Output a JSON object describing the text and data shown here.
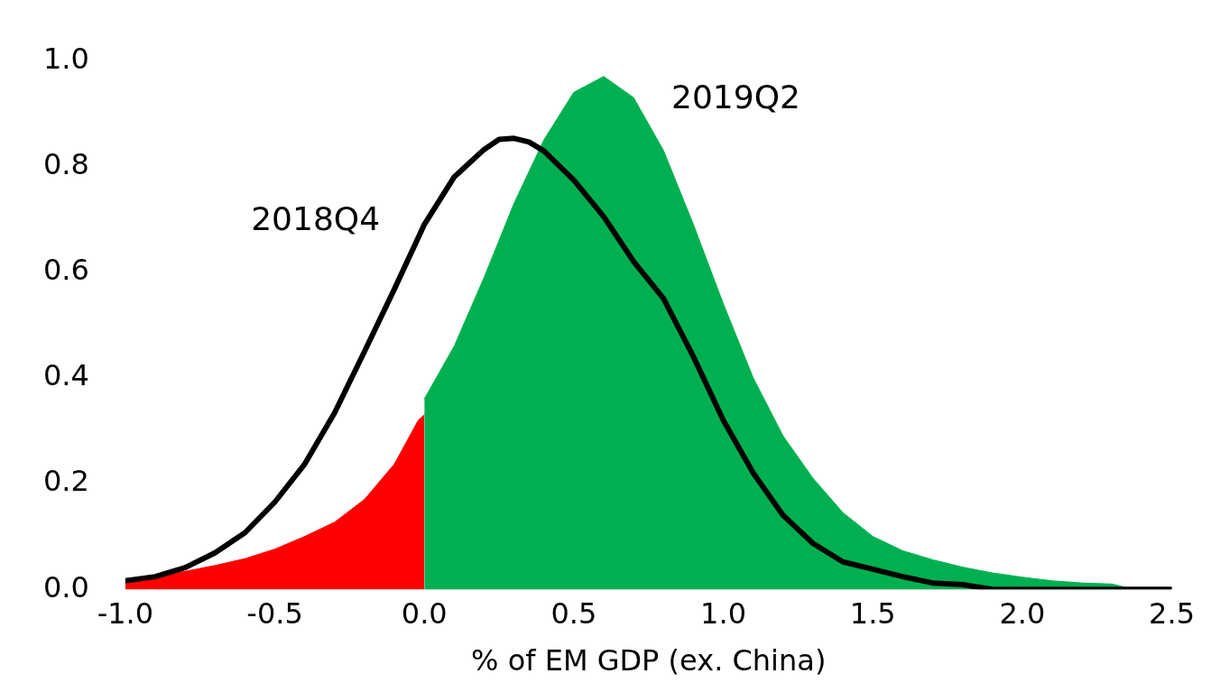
{
  "chart_data": {
    "type": "area",
    "xlabel": "% of EM GDP (ex. China)",
    "xlim": [
      -1,
      2.5
    ],
    "xticks": [
      {
        "value": -1,
        "label": "-1.0"
      },
      {
        "value": -0.5,
        "label": "-0.5"
      },
      {
        "value": 0,
        "label": "0.0"
      },
      {
        "value": 0.5,
        "label": "0.5"
      },
      {
        "value": 1,
        "label": "1.0"
      },
      {
        "value": 1.5,
        "label": "1.5"
      },
      {
        "value": 2,
        "label": "2.0"
      },
      {
        "value": 2.5,
        "label": "2.5"
      }
    ],
    "ylim": [
      0,
      1
    ],
    "yticks": [
      {
        "value": 0,
        "label": "0.0"
      },
      {
        "value": 0.2,
        "label": "0.2"
      },
      {
        "value": 0.4,
        "label": "0.4"
      },
      {
        "value": 0.6,
        "label": "0.6"
      },
      {
        "value": 0.8,
        "label": "0.8"
      },
      {
        "value": 1,
        "label": "1.0"
      }
    ],
    "grid": false,
    "series": [
      {
        "color": "#ff0000",
        "x": [
          -1,
          -0.9,
          -0.8,
          -0.7,
          -0.6,
          -0.5,
          -0.4,
          -0.3,
          -0.2,
          -0.1,
          -0.02,
          0
        ],
        "values": [
          0.01,
          0.024,
          0.034,
          0.045,
          0.058,
          0.076,
          0.1,
          0.127,
          0.17,
          0.237,
          0.32,
          0.33
        ]
      },
      {
        "name": "2019Q2",
        "color": "#00b050",
        "x": [
          0,
          0.1,
          0.2,
          0.3,
          0.4,
          0.5,
          0.6,
          0.7,
          0.8,
          0.9,
          1,
          1.1,
          1.2,
          1.3,
          1.4,
          1.5,
          1.6,
          1.7,
          1.8,
          1.9,
          2,
          2.1,
          2.2,
          2.3,
          2.35,
          2.5
        ],
        "values": [
          0.36,
          0.46,
          0.59,
          0.73,
          0.85,
          0.94,
          0.97,
          0.93,
          0.83,
          0.69,
          0.54,
          0.4,
          0.29,
          0.21,
          0.145,
          0.1,
          0.073,
          0.056,
          0.042,
          0.031,
          0.023,
          0.016,
          0.012,
          0.01,
          0.003,
          0.002
        ]
      },
      {
        "name": "2018Q4",
        "type": "line",
        "color": "#000000",
        "x": [
          -1,
          -0.9,
          -0.8,
          -0.7,
          -0.6,
          -0.5,
          -0.4,
          -0.3,
          -0.2,
          -0.1,
          0,
          0.1,
          0.2,
          0.25,
          0.3,
          0.35,
          0.4,
          0.5,
          0.6,
          0.7,
          0.8,
          0.9,
          1,
          1.1,
          1.2,
          1.3,
          1.4,
          1.5,
          1.6,
          1.7,
          1.8,
          1.9,
          2.5
        ],
        "values": [
          0.016,
          0.024,
          0.041,
          0.069,
          0.107,
          0.165,
          0.237,
          0.334,
          0.45,
          0.568,
          0.69,
          0.78,
          0.832,
          0.851,
          0.853,
          0.846,
          0.829,
          0.774,
          0.705,
          0.62,
          0.55,
          0.44,
          0.32,
          0.22,
          0.14,
          0.087,
          0.052,
          0.038,
          0.024,
          0.012,
          0.009,
          0,
          0
        ]
      }
    ]
  }
}
